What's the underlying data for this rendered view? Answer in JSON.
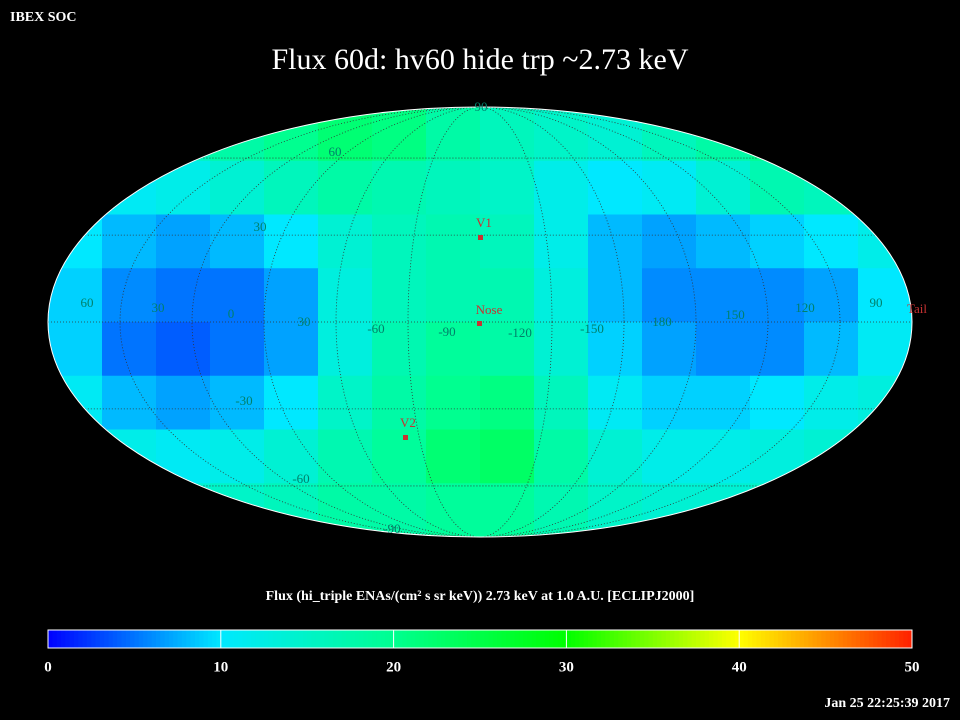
{
  "header": {
    "org": "IBEX SOC",
    "title": "Flux   60d: hv60 hide trp ~2.73 keV",
    "timestamp": "Jan 25 22:25:39 2017"
  },
  "map": {
    "flux_grid": [
      [
        14,
        15,
        16,
        18,
        20,
        22,
        21,
        18,
        16,
        15,
        14,
        16,
        18,
        20,
        18,
        16
      ],
      [
        12,
        11,
        12,
        14,
        16,
        18,
        17,
        16,
        15,
        12,
        10,
        11,
        14,
        17,
        16,
        14
      ],
      [
        10,
        8,
        7,
        8,
        10,
        14,
        16,
        17,
        16,
        12,
        8,
        7,
        8,
        9,
        10,
        12
      ],
      [
        9,
        6,
        5,
        5,
        7,
        13,
        16,
        17,
        17,
        13,
        8,
        6,
        6,
        6,
        7,
        10
      ],
      [
        9,
        5,
        4,
        5,
        7,
        13,
        17,
        19,
        18,
        14,
        9,
        7,
        6,
        6,
        8,
        11
      ],
      [
        11,
        8,
        7,
        8,
        10,
        15,
        18,
        20,
        21,
        16,
        11,
        9,
        9,
        10,
        12,
        13
      ],
      [
        13,
        12,
        11,
        12,
        14,
        17,
        19,
        22,
        23,
        18,
        14,
        12,
        12,
        13,
        14,
        14
      ],
      [
        14,
        14,
        14,
        15,
        16,
        18,
        18,
        19,
        19,
        17,
        15,
        14,
        14,
        15,
        15,
        15
      ]
    ],
    "grid_labels": [
      90,
      60,
      30,
      60,
      30,
      0,
      30,
      -60,
      -90,
      -120,
      -150,
      180,
      150,
      120,
      90,
      -30,
      -60,
      -90
    ],
    "markers": [
      "V1",
      "Nose",
      "V2"
    ],
    "tail_label": "Tail"
  },
  "colorbar": {
    "label": "Flux (hi_triple ENAs/(cm² s sr keV))  2.73 keV at 1.0 A.U. [ECLIPJ2000]",
    "lim": [
      0,
      50
    ],
    "ticks": [
      0,
      10,
      20,
      30,
      40,
      50
    ],
    "colormap": [
      {
        "value": 0,
        "color": "#0000ff"
      },
      {
        "value": 10,
        "color": "#00e8ff"
      },
      {
        "value": 20,
        "color": "#00ff90"
      },
      {
        "value": 30,
        "color": "#00ff00"
      },
      {
        "value": 40,
        "color": "#ffff00"
      },
      {
        "value": 50,
        "color": "#ff2000"
      }
    ]
  }
}
